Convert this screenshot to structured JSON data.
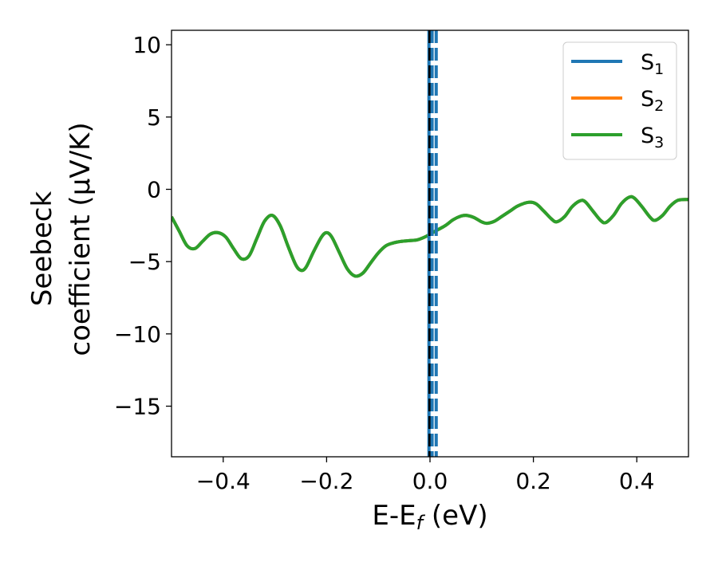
{
  "chart_data": {
    "type": "line",
    "title": "",
    "xlabel": {
      "main": "E-E",
      "sub": "f",
      "suffix": " (eV)"
    },
    "ylabel": {
      "line1": "Seebeck",
      "line2": "coefficient  (μV/K)"
    },
    "xlim": [
      -0.5,
      0.5
    ],
    "ylim": [
      -18.5,
      11
    ],
    "xticks": [
      {
        "value": -0.4,
        "label": "−0.4"
      },
      {
        "value": -0.2,
        "label": "−0.2"
      },
      {
        "value": 0.0,
        "label": "0.0"
      },
      {
        "value": 0.2,
        "label": "0.2"
      },
      {
        "value": 0.4,
        "label": "0.4"
      }
    ],
    "yticks": [
      {
        "value": 10,
        "label": "10"
      },
      {
        "value": 5,
        "label": "5"
      },
      {
        "value": 0,
        "label": "0"
      },
      {
        "value": -5,
        "label": "−5"
      },
      {
        "value": -10,
        "label": "−10"
      },
      {
        "value": -15,
        "label": "−15"
      }
    ],
    "grid": false,
    "legend_position": "top-right",
    "series": [
      {
        "name": "S",
        "sub": "1",
        "color": "#1f77b4"
      },
      {
        "name": "S",
        "sub": "2",
        "color": "#ff7f0e"
      },
      {
        "name": "S",
        "sub": "3",
        "color": "#2ca02c"
      }
    ],
    "curve_points": [
      [
        -0.5,
        -1.9
      ],
      [
        -0.485,
        -2.9
      ],
      [
        -0.47,
        -3.9
      ],
      [
        -0.455,
        -4.1
      ],
      [
        -0.44,
        -3.6
      ],
      [
        -0.425,
        -3.1
      ],
      [
        -0.41,
        -3.0
      ],
      [
        -0.395,
        -3.3
      ],
      [
        -0.38,
        -4.1
      ],
      [
        -0.365,
        -4.8
      ],
      [
        -0.35,
        -4.6
      ],
      [
        -0.335,
        -3.4
      ],
      [
        -0.32,
        -2.2
      ],
      [
        -0.305,
        -1.8
      ],
      [
        -0.29,
        -2.5
      ],
      [
        -0.275,
        -3.9
      ],
      [
        -0.26,
        -5.2
      ],
      [
        -0.25,
        -5.6
      ],
      [
        -0.24,
        -5.4
      ],
      [
        -0.225,
        -4.3
      ],
      [
        -0.21,
        -3.3
      ],
      [
        -0.2,
        -3.0
      ],
      [
        -0.19,
        -3.3
      ],
      [
        -0.175,
        -4.4
      ],
      [
        -0.16,
        -5.5
      ],
      [
        -0.145,
        -6.0
      ],
      [
        -0.13,
        -5.8
      ],
      [
        -0.115,
        -5.1
      ],
      [
        -0.1,
        -4.4
      ],
      [
        -0.085,
        -3.9
      ],
      [
        -0.07,
        -3.7
      ],
      [
        -0.055,
        -3.6
      ],
      [
        -0.04,
        -3.55
      ],
      [
        -0.025,
        -3.5
      ],
      [
        -0.01,
        -3.3
      ],
      [
        0.0,
        -3.1
      ],
      [
        0.015,
        -2.8
      ],
      [
        0.03,
        -2.5
      ],
      [
        0.045,
        -2.1
      ],
      [
        0.06,
        -1.85
      ],
      [
        0.07,
        -1.8
      ],
      [
        0.085,
        -1.95
      ],
      [
        0.1,
        -2.25
      ],
      [
        0.11,
        -2.35
      ],
      [
        0.125,
        -2.2
      ],
      [
        0.14,
        -1.85
      ],
      [
        0.155,
        -1.5
      ],
      [
        0.17,
        -1.15
      ],
      [
        0.19,
        -0.9
      ],
      [
        0.205,
        -1.0
      ],
      [
        0.22,
        -1.5
      ],
      [
        0.235,
        -2.05
      ],
      [
        0.245,
        -2.25
      ],
      [
        0.26,
        -1.9
      ],
      [
        0.275,
        -1.2
      ],
      [
        0.29,
        -0.8
      ],
      [
        0.3,
        -0.85
      ],
      [
        0.315,
        -1.5
      ],
      [
        0.33,
        -2.15
      ],
      [
        0.34,
        -2.3
      ],
      [
        0.355,
        -1.8
      ],
      [
        0.37,
        -1.0
      ],
      [
        0.385,
        -0.55
      ],
      [
        0.395,
        -0.6
      ],
      [
        0.41,
        -1.2
      ],
      [
        0.425,
        -1.9
      ],
      [
        0.435,
        -2.15
      ],
      [
        0.45,
        -1.8
      ],
      [
        0.465,
        -1.15
      ],
      [
        0.48,
        -0.75
      ],
      [
        0.5,
        -0.7
      ]
    ],
    "vertical_lines": [
      {
        "x": -0.002,
        "color": "#1f77b4",
        "style": "solid"
      },
      {
        "x": 0.0,
        "color": "#000000",
        "style": "dashed"
      },
      {
        "x": 0.004,
        "color": "#1f77b4",
        "style": "dashed"
      },
      {
        "x": 0.012,
        "color": "#1f77b4",
        "style": "dashed"
      }
    ]
  }
}
